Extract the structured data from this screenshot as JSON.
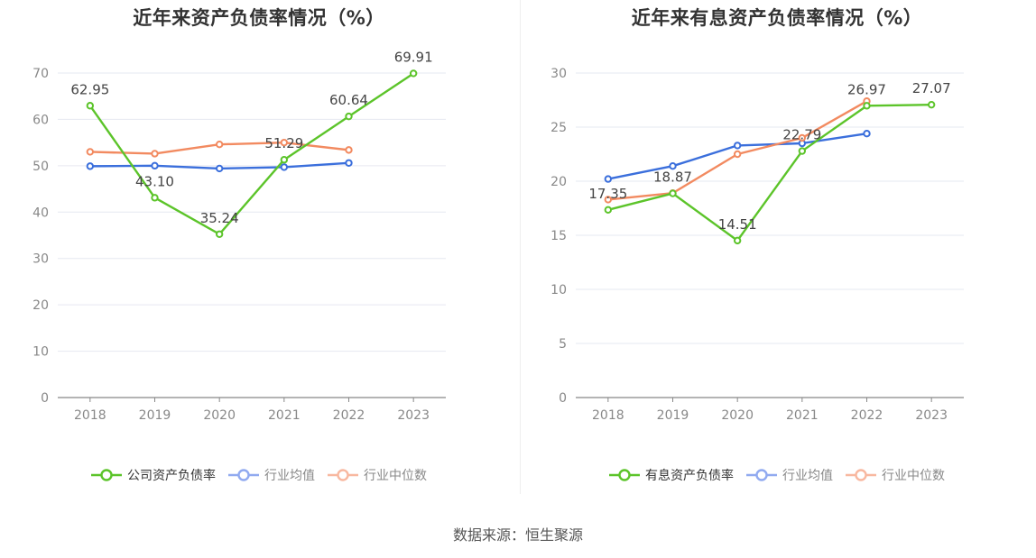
{
  "source": "数据来源：恒生聚源",
  "colors": {
    "company": "#5cc42a",
    "industry_avg": "#3b6fdc",
    "industry_median": "#f28a60",
    "legend_avg": "#91aaf0",
    "legend_median": "#f8b8a0"
  },
  "chart_data": [
    {
      "type": "line",
      "title": "近年来资产负债率情况（%）",
      "categories": [
        "2018",
        "2019",
        "2020",
        "2021",
        "2022",
        "2023"
      ],
      "ylim": [
        0,
        70
      ],
      "yticks": [
        0,
        10,
        20,
        30,
        40,
        50,
        60,
        70
      ],
      "grid": true,
      "legend_position": "bottom",
      "series": [
        {
          "name": "公司资产负债率",
          "values": [
            62.95,
            43.1,
            35.24,
            51.29,
            60.64,
            69.91
          ],
          "labels": [
            "62.95",
            "43.10",
            "35.24",
            "51.29",
            "60.64",
            "69.91"
          ]
        },
        {
          "name": "行业均值",
          "values": [
            49.9,
            50.0,
            49.4,
            49.7,
            50.6,
            null
          ]
        },
        {
          "name": "行业中位数",
          "values": [
            53.0,
            52.6,
            54.6,
            55.0,
            53.4,
            null
          ]
        }
      ]
    },
    {
      "type": "line",
      "title": "近年来有息资产负债率情况（%）",
      "categories": [
        "2018",
        "2019",
        "2020",
        "2021",
        "2022",
        "2023"
      ],
      "ylim": [
        0,
        30
      ],
      "yticks": [
        0,
        5,
        10,
        15,
        20,
        25,
        30
      ],
      "grid": true,
      "legend_position": "bottom",
      "series": [
        {
          "name": "有息资产负债率",
          "values": [
            17.35,
            18.87,
            14.51,
            22.79,
            26.97,
            27.07
          ],
          "labels": [
            "17.35",
            "18.87",
            "14.51",
            "22.79",
            "26.97",
            "27.07"
          ]
        },
        {
          "name": "行业均值",
          "values": [
            20.2,
            21.4,
            23.3,
            23.5,
            24.4,
            null
          ]
        },
        {
          "name": "行业中位数",
          "values": [
            18.3,
            18.9,
            22.5,
            24.0,
            27.4,
            null
          ]
        }
      ]
    }
  ]
}
